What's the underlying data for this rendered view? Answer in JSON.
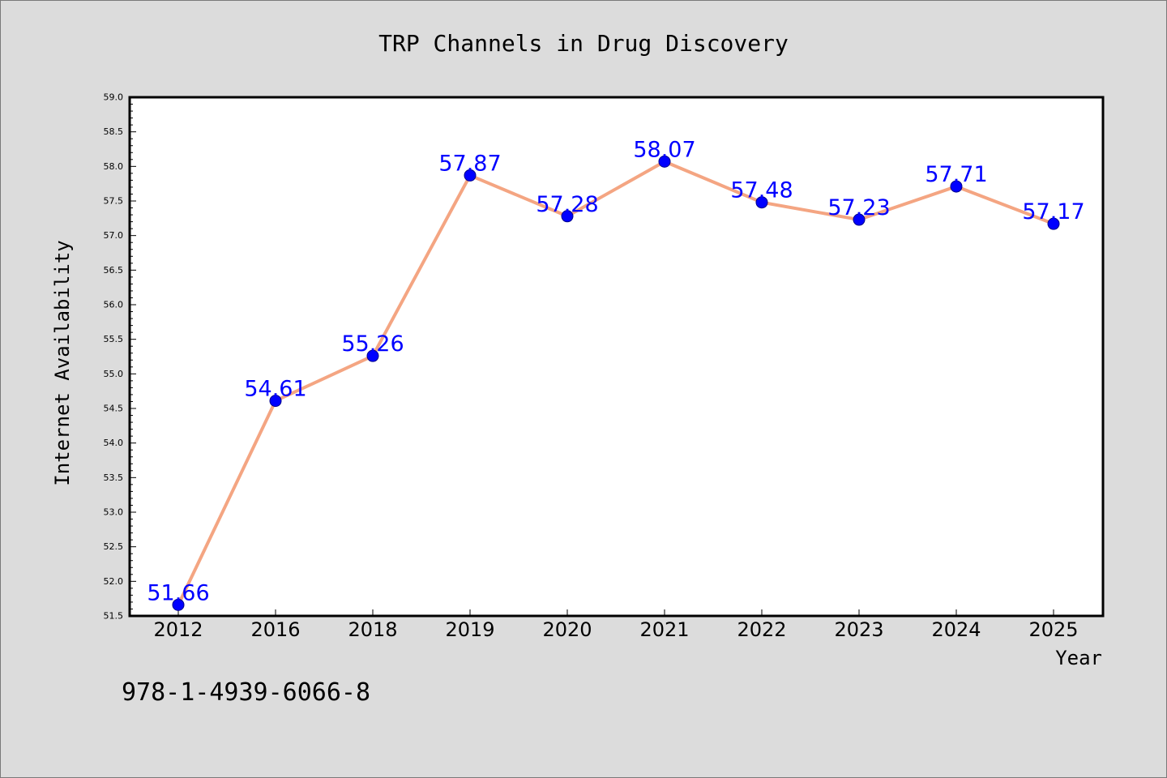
{
  "chart_data": {
    "type": "line",
    "title": "TRP Channels in Drug Discovery",
    "xlabel": "Year",
    "ylabel": "Internet Availability",
    "categories": [
      "2012",
      "2016",
      "2018",
      "2019",
      "2020",
      "2021",
      "2022",
      "2023",
      "2024",
      "2025"
    ],
    "series": [
      {
        "values": [
          51.66,
          54.61,
          55.26,
          57.87,
          57.28,
          58.07,
          57.48,
          57.23,
          57.71,
          57.17
        ],
        "data_labels": [
          "51.66",
          "54.61",
          "55.26",
          "57.87",
          "57.28",
          "58.07",
          "57.48",
          "57.23",
          "57.71",
          "57.17"
        ]
      }
    ],
    "ylim": [
      51.5,
      59.0
    ],
    "yticks": [
      "51.5",
      "52.0",
      "52.5",
      "53.0",
      "53.5",
      "54.0",
      "54.5",
      "55.0",
      "55.5",
      "56.0",
      "56.5",
      "57.0",
      "57.5",
      "58.0",
      "58.5",
      "59.0"
    ],
    "grid": false,
    "colors": {
      "line": "#f4a582",
      "marker": "#0000ff",
      "marker_edge": "#00008b",
      "data_label": "#0000ff",
      "background": "#dcdcdc",
      "plot_area": "#ffffff"
    }
  },
  "annotation": "978-1-4939-6066-8"
}
